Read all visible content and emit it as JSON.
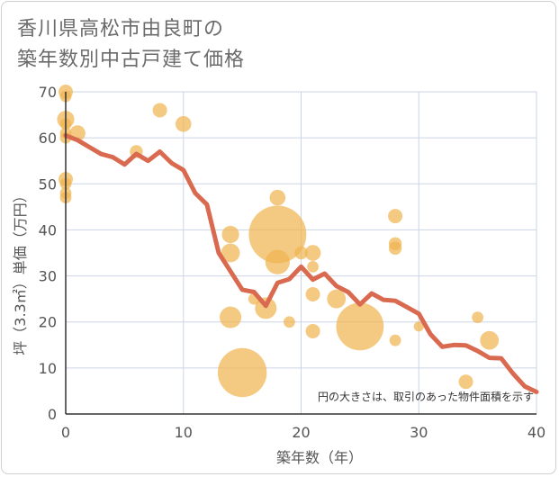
{
  "chart_data": {
    "type": "scatter",
    "title_lines": [
      "香川県高松市由良町の",
      "築年数別中古戸建て価格"
    ],
    "xlabel": "築年数（年）",
    "ylabel": "坪（3.3㎡）単価（万円）",
    "xlim": [
      0,
      40
    ],
    "ylim": [
      0,
      70
    ],
    "xticks": [
      0,
      10,
      20,
      30,
      40
    ],
    "yticks": [
      0,
      10,
      20,
      30,
      40,
      50,
      60,
      70
    ],
    "grid": true,
    "annotation": "円の大きさは、取引のあった物件面積を示す",
    "colors": {
      "bubble": "#f0b450",
      "line": "#d96a50",
      "axis": "#555555",
      "grid": "#cbd5e5"
    },
    "bubbles": [
      {
        "x": 0,
        "y": 70,
        "size": 1.0
      },
      {
        "x": 0,
        "y": 69,
        "size": 0.8
      },
      {
        "x": 0,
        "y": 64,
        "size": 1.2
      },
      {
        "x": 0,
        "y": 63,
        "size": 0.8
      },
      {
        "x": 0,
        "y": 61,
        "size": 0.8
      },
      {
        "x": 0,
        "y": 60,
        "size": 0.8
      },
      {
        "x": 0,
        "y": 51,
        "size": 1.0
      },
      {
        "x": 0,
        "y": 50,
        "size": 0.8
      },
      {
        "x": 0,
        "y": 48,
        "size": 0.8
      },
      {
        "x": 0,
        "y": 47,
        "size": 0.8
      },
      {
        "x": 1,
        "y": 61,
        "size": 1.1
      },
      {
        "x": 6,
        "y": 57,
        "size": 0.9
      },
      {
        "x": 8,
        "y": 66,
        "size": 1.0
      },
      {
        "x": 10,
        "y": 63,
        "size": 1.1
      },
      {
        "x": 14,
        "y": 39,
        "size": 1.2
      },
      {
        "x": 14,
        "y": 35,
        "size": 1.3
      },
      {
        "x": 14,
        "y": 21,
        "size": 1.5
      },
      {
        "x": 15,
        "y": 9,
        "size": 3.4
      },
      {
        "x": 16,
        "y": 25,
        "size": 0.8
      },
      {
        "x": 17,
        "y": 23,
        "size": 1.5
      },
      {
        "x": 18,
        "y": 47,
        "size": 1.1
      },
      {
        "x": 18,
        "y": 39,
        "size": 4.0
      },
      {
        "x": 18,
        "y": 33,
        "size": 1.7
      },
      {
        "x": 19,
        "y": 20,
        "size": 0.8
      },
      {
        "x": 20,
        "y": 35,
        "size": 0.9
      },
      {
        "x": 21,
        "y": 35,
        "size": 1.1
      },
      {
        "x": 21,
        "y": 32,
        "size": 0.8
      },
      {
        "x": 21,
        "y": 26,
        "size": 1.0
      },
      {
        "x": 21,
        "y": 18,
        "size": 1.0
      },
      {
        "x": 23,
        "y": 25,
        "size": 1.3
      },
      {
        "x": 25,
        "y": 19,
        "size": 3.3
      },
      {
        "x": 28,
        "y": 43,
        "size": 1.0
      },
      {
        "x": 28,
        "y": 37,
        "size": 0.9
      },
      {
        "x": 28,
        "y": 36,
        "size": 0.9
      },
      {
        "x": 28,
        "y": 16,
        "size": 0.8
      },
      {
        "x": 30,
        "y": 19,
        "size": 0.7
      },
      {
        "x": 34,
        "y": 7,
        "size": 1.0
      },
      {
        "x": 35,
        "y": 21,
        "size": 0.8
      },
      {
        "x": 36,
        "y": 16,
        "size": 1.3
      }
    ],
    "trend": [
      {
        "x": 0,
        "y": 60.5
      },
      {
        "x": 1,
        "y": 59.5
      },
      {
        "x": 2,
        "y": 58
      },
      {
        "x": 3,
        "y": 56.5
      },
      {
        "x": 4,
        "y": 55.8
      },
      {
        "x": 5,
        "y": 54.2
      },
      {
        "x": 6,
        "y": 56.5
      },
      {
        "x": 7,
        "y": 55
      },
      {
        "x": 8,
        "y": 57
      },
      {
        "x": 9,
        "y": 54.5
      },
      {
        "x": 10,
        "y": 53
      },
      {
        "x": 11,
        "y": 48
      },
      {
        "x": 12,
        "y": 45.5
      },
      {
        "x": 13,
        "y": 35
      },
      {
        "x": 14,
        "y": 31
      },
      {
        "x": 15,
        "y": 27
      },
      {
        "x": 16,
        "y": 26.5
      },
      {
        "x": 17,
        "y": 23.5
      },
      {
        "x": 18,
        "y": 28.5
      },
      {
        "x": 19,
        "y": 29.3
      },
      {
        "x": 20,
        "y": 32
      },
      {
        "x": 21,
        "y": 29.2
      },
      {
        "x": 22,
        "y": 30.5
      },
      {
        "x": 23,
        "y": 27.8
      },
      {
        "x": 24,
        "y": 26.5
      },
      {
        "x": 25,
        "y": 23.8
      },
      {
        "x": 26,
        "y": 26.2
      },
      {
        "x": 27,
        "y": 24.8
      },
      {
        "x": 28,
        "y": 24.6
      },
      {
        "x": 29,
        "y": 23.2
      },
      {
        "x": 30,
        "y": 21.8
      },
      {
        "x": 31,
        "y": 17.3
      },
      {
        "x": 32,
        "y": 14.6
      },
      {
        "x": 33,
        "y": 15
      },
      {
        "x": 34,
        "y": 14.9
      },
      {
        "x": 35,
        "y": 13.7
      },
      {
        "x": 36,
        "y": 12.2
      },
      {
        "x": 37,
        "y": 12.1
      },
      {
        "x": 38,
        "y": 8.8
      },
      {
        "x": 39,
        "y": 6
      },
      {
        "x": 40,
        "y": 4.8
      }
    ]
  }
}
